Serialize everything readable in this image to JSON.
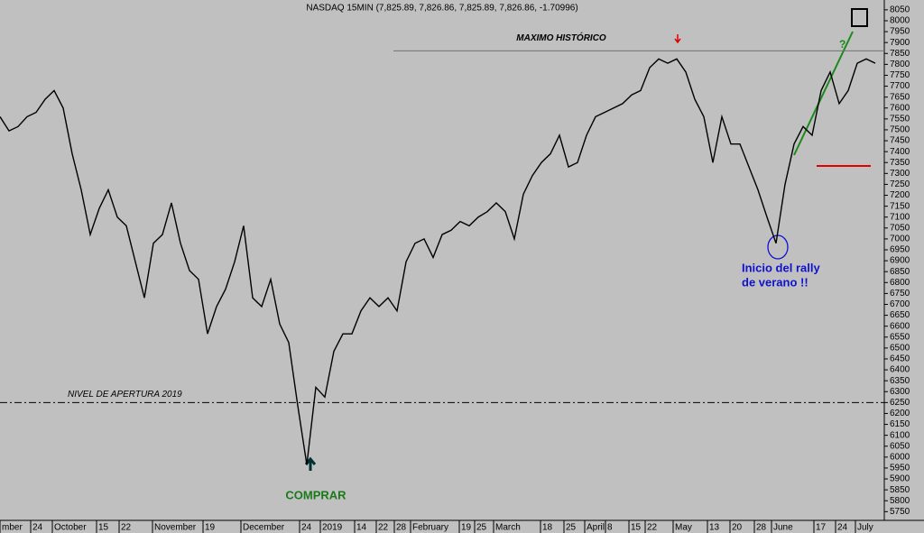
{
  "chart_data": {
    "type": "line",
    "title": "NASDAQ 15MIN (7,825.89, 7,826.86, 7,825.89, 7,826.86, -1.70996)",
    "color": "#000000",
    "values": [
      7560,
      7495,
      7515,
      7560,
      7580,
      7640,
      7680,
      7600,
      7390,
      7225,
      7020,
      7140,
      7225,
      7100,
      7060,
      6895,
      6730,
      6980,
      7020,
      7165,
      6980,
      6855,
      6815,
      6565,
      6690,
      6770,
      6895,
      7060,
      6730,
      6690,
      6815,
      6610,
      6525,
      6235,
      5965,
      6320,
      6275,
      6485,
      6565,
      6565,
      6670,
      6730,
      6690,
      6730,
      6670,
      6895,
      6980,
      7000,
      6915,
      7020,
      7040,
      7080,
      7060,
      7100,
      7125,
      7165,
      7125,
      7000,
      7205,
      7290,
      7350,
      7390,
      7475,
      7330,
      7350,
      7475,
      7560,
      7580,
      7600,
      7620,
      7660,
      7680,
      7785,
      7825,
      7805,
      7825,
      7765,
      7640,
      7560,
      7350,
      7560,
      7435,
      7435,
      7330,
      7225,
      7100,
      6980,
      7250,
      7435,
      7515,
      7475,
      7680,
      7765,
      7620,
      7680,
      7805,
      7825,
      7805
    ],
    "xlim": [
      0,
      98
    ],
    "xticks": [
      {
        "value": 0,
        "label": "mber"
      },
      {
        "value": 3.4,
        "label": "24"
      },
      {
        "value": 5.8,
        "label": "October"
      },
      {
        "value": 10.7,
        "label": "15"
      },
      {
        "value": 13.2,
        "label": "22"
      },
      {
        "value": 16.9,
        "label": "November"
      },
      {
        "value": 22.5,
        "label": "19"
      },
      {
        "value": 26.7,
        "label": "December"
      },
      {
        "value": 33.2,
        "label": "24"
      },
      {
        "value": 35.5,
        "label": "2019"
      },
      {
        "value": 39.3,
        "label": "14"
      },
      {
        "value": 41.7,
        "label": "22"
      },
      {
        "value": 43.7,
        "label": "28"
      },
      {
        "value": 45.5,
        "label": "February"
      },
      {
        "value": 50.9,
        "label": "19"
      },
      {
        "value": 52.6,
        "label": "25"
      },
      {
        "value": 54.7,
        "label": "March"
      },
      {
        "value": 59.9,
        "label": "18"
      },
      {
        "value": 62.5,
        "label": "25"
      },
      {
        "value": 64.8,
        "label": "April"
      },
      {
        "value": 67.1,
        "label": "8"
      },
      {
        "value": 69.7,
        "label": "15"
      },
      {
        "value": 71.5,
        "label": "22"
      },
      {
        "value": 74.6,
        "label": "May"
      },
      {
        "value": 78.4,
        "label": "13"
      },
      {
        "value": 80.9,
        "label": "20"
      },
      {
        "value": 83.6,
        "label": "28"
      },
      {
        "value": 85.5,
        "label": "June"
      },
      {
        "value": 90.2,
        "label": "17"
      },
      {
        "value": 92.6,
        "label": "24"
      },
      {
        "value": 94.8,
        "label": "July"
      }
    ],
    "ylim": [
      5710,
      8095
    ],
    "yticks": [
      5750,
      5800,
      5850,
      5900,
      5950,
      6000,
      6050,
      6100,
      6150,
      6200,
      6250,
      6300,
      6350,
      6400,
      6450,
      6500,
      6550,
      6600,
      6650,
      6700,
      6750,
      6800,
      6850,
      6900,
      6950,
      7000,
      7050,
      7100,
      7150,
      7200,
      7250,
      7300,
      7350,
      7400,
      7450,
      7500,
      7550,
      7600,
      7650,
      7700,
      7750,
      7800,
      7850,
      7900,
      7950,
      8000,
      8050
    ],
    "reference_lines": [
      {
        "label": "MAXIMO HISTÓRICO",
        "value": 7862
      },
      {
        "label": "NIVEL DE APERTURA 2019",
        "value": 6250
      }
    ],
    "annotations": {
      "buy": "COMPRAR",
      "rally_1": "Inicio del rally",
      "rally_2": "de verano !!",
      "question": "?"
    }
  }
}
